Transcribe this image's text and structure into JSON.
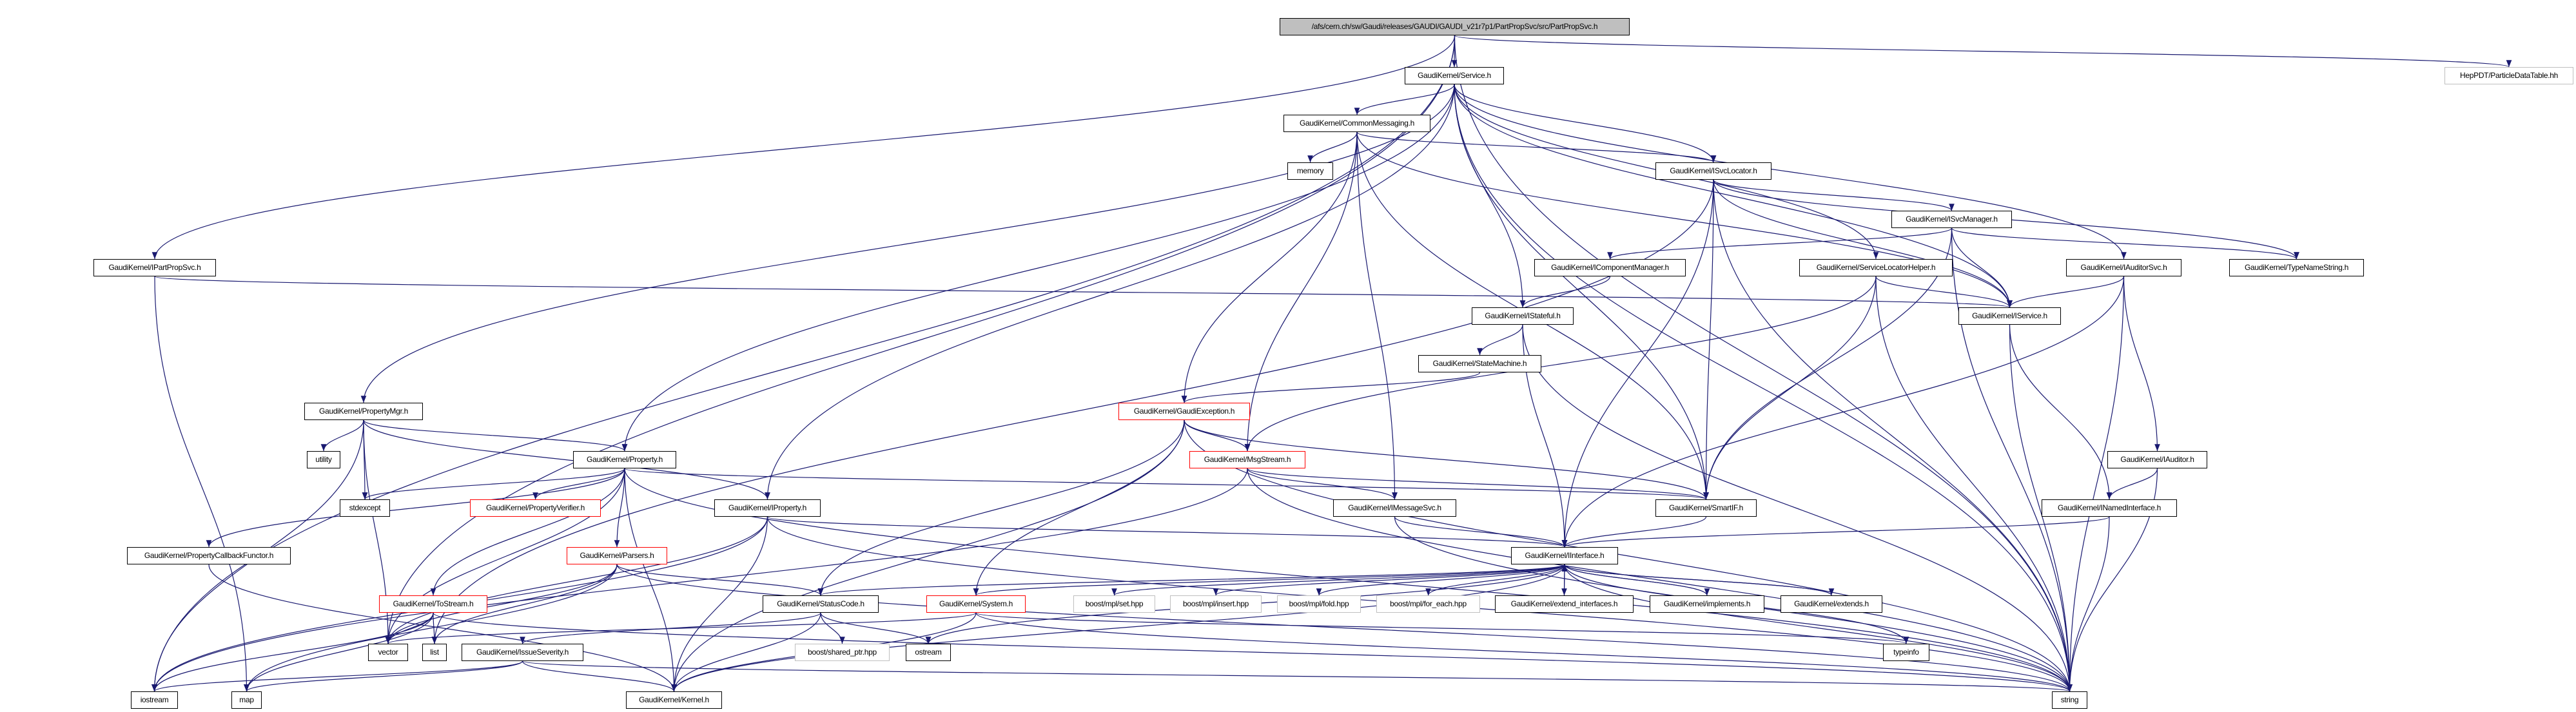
{
  "graph": {
    "edge_color": "#191970",
    "nodes": [
      {
        "id": "root",
        "label": "/afs/cern.ch/sw/Gaudi/releases/GAUDI/GAUDI_v21r7p1/PartPropSvc/src/PartPropSvc.h",
        "style": "root"
      },
      {
        "id": "service",
        "label": "GaudiKernel/Service.h",
        "style": "normal"
      },
      {
        "id": "hepdt",
        "label": "HepPDT/ParticleDataTable.hh",
        "style": "gray"
      },
      {
        "id": "commonmsg",
        "label": "GaudiKernel/CommonMessaging.h",
        "style": "normal"
      },
      {
        "id": "memory",
        "label": "memory",
        "style": "normal"
      },
      {
        "id": "isvclocator",
        "label": "GaudiKernel/ISvcLocator.h",
        "style": "normal"
      },
      {
        "id": "isvcmanager",
        "label": "GaudiKernel/ISvcManager.h",
        "style": "normal"
      },
      {
        "id": "ipartpropsvc",
        "label": "GaudiKernel/IPartPropSvc.h",
        "style": "normal"
      },
      {
        "id": "icomponentmanager",
        "label": "GaudiKernel/IComponentManager.h",
        "style": "normal"
      },
      {
        "id": "servicelocatorhelper",
        "label": "GaudiKernel/ServiceLocatorHelper.h",
        "style": "normal"
      },
      {
        "id": "iauditorsvc",
        "label": "GaudiKernel/IAuditorSvc.h",
        "style": "normal"
      },
      {
        "id": "typenamestring",
        "label": "GaudiKernel/TypeNameString.h",
        "style": "normal"
      },
      {
        "id": "istateful",
        "label": "GaudiKernel/IStateful.h",
        "style": "normal"
      },
      {
        "id": "iservice",
        "label": "GaudiKernel/IService.h",
        "style": "normal"
      },
      {
        "id": "statemachine",
        "label": "GaudiKernel/StateMachine.h",
        "style": "normal"
      },
      {
        "id": "propertymgr",
        "label": "GaudiKernel/PropertyMgr.h",
        "style": "normal"
      },
      {
        "id": "gaudiexception",
        "label": "GaudiKernel/GaudiException.h",
        "style": "red"
      },
      {
        "id": "utility",
        "label": "utility",
        "style": "normal"
      },
      {
        "id": "property",
        "label": "GaudiKernel/Property.h",
        "style": "normal"
      },
      {
        "id": "msgstream",
        "label": "GaudiKernel/MsgStream.h",
        "style": "red"
      },
      {
        "id": "iauditor",
        "label": "GaudiKernel/IAuditor.h",
        "style": "normal"
      },
      {
        "id": "stdexcept",
        "label": "stdexcept",
        "style": "normal"
      },
      {
        "id": "propertyverifier",
        "label": "GaudiKernel/PropertyVerifier.h",
        "style": "red"
      },
      {
        "id": "iproperty",
        "label": "GaudiKernel/IProperty.h",
        "style": "normal"
      },
      {
        "id": "imessagesvc",
        "label": "GaudiKernel/IMessageSvc.h",
        "style": "normal"
      },
      {
        "id": "smartif",
        "label": "GaudiKernel/SmartIF.h",
        "style": "normal"
      },
      {
        "id": "inamedinterface",
        "label": "GaudiKernel/INamedInterface.h",
        "style": "normal"
      },
      {
        "id": "propertycallbackfunctor",
        "label": "GaudiKernel/PropertyCallbackFunctor.h",
        "style": "normal"
      },
      {
        "id": "parsers",
        "label": "GaudiKernel/Parsers.h",
        "style": "red"
      },
      {
        "id": "iinterface",
        "label": "GaudiKernel/IInterface.h",
        "style": "normal"
      },
      {
        "id": "tostream",
        "label": "GaudiKernel/ToStream.h",
        "style": "red"
      },
      {
        "id": "statuscode",
        "label": "GaudiKernel/StatusCode.h",
        "style": "normal"
      },
      {
        "id": "system",
        "label": "GaudiKernel/System.h",
        "style": "red"
      },
      {
        "id": "mplset",
        "label": "boost/mpl/set.hpp",
        "style": "gray"
      },
      {
        "id": "mplinsert",
        "label": "boost/mpl/insert.hpp",
        "style": "gray"
      },
      {
        "id": "mplfold",
        "label": "boost/mpl/fold.hpp",
        "style": "gray"
      },
      {
        "id": "mplforeach",
        "label": "boost/mpl/for_each.hpp",
        "style": "gray"
      },
      {
        "id": "extendinterfaces",
        "label": "GaudiKernel/extend_interfaces.h",
        "style": "normal"
      },
      {
        "id": "implements",
        "label": "GaudiKernel/implements.h",
        "style": "normal"
      },
      {
        "id": "extends",
        "label": "GaudiKernel/extends.h",
        "style": "normal"
      },
      {
        "id": "vector",
        "label": "vector",
        "style": "normal"
      },
      {
        "id": "list",
        "label": "list",
        "style": "normal"
      },
      {
        "id": "issueseverity",
        "label": "GaudiKernel/IssueSeverity.h",
        "style": "normal"
      },
      {
        "id": "sharedptr",
        "label": "boost/shared_ptr.hpp",
        "style": "gray"
      },
      {
        "id": "ostream",
        "label": "ostream",
        "style": "normal"
      },
      {
        "id": "typeinfo",
        "label": "typeinfo",
        "style": "normal"
      },
      {
        "id": "iostream",
        "label": "iostream",
        "style": "normal"
      },
      {
        "id": "map",
        "label": "map",
        "style": "normal"
      },
      {
        "id": "kernel",
        "label": "GaudiKernel/Kernel.h",
        "style": "normal"
      },
      {
        "id": "string",
        "label": "string",
        "style": "normal"
      }
    ],
    "edges": [
      [
        "root",
        "service"
      ],
      [
        "root",
        "ipartpropsvc"
      ],
      [
        "root",
        "hepdt"
      ],
      [
        "root",
        "vector"
      ],
      [
        "root",
        "iostream"
      ],
      [
        "root",
        "string"
      ],
      [
        "service",
        "commonmsg"
      ],
      [
        "service",
        "isvclocator"
      ],
      [
        "service",
        "istateful"
      ],
      [
        "service",
        "iservice"
      ],
      [
        "service",
        "smartif"
      ],
      [
        "service",
        "iauditorsvc"
      ],
      [
        "service",
        "servicelocatorhelper"
      ],
      [
        "service",
        "propertymgr"
      ],
      [
        "service",
        "property"
      ],
      [
        "service",
        "iproperty"
      ],
      [
        "service",
        "string"
      ],
      [
        "commonmsg",
        "memory"
      ],
      [
        "commonmsg",
        "isvclocator"
      ],
      [
        "commonmsg",
        "iservice"
      ],
      [
        "commonmsg",
        "gaudiexception"
      ],
      [
        "commonmsg",
        "msgstream"
      ],
      [
        "commonmsg",
        "imessagesvc"
      ],
      [
        "commonmsg",
        "smartif"
      ],
      [
        "isvclocator",
        "isvcmanager"
      ],
      [
        "isvclocator",
        "typenamestring"
      ],
      [
        "isvclocator",
        "iservice"
      ],
      [
        "isvclocator",
        "smartif"
      ],
      [
        "isvclocator",
        "iinterface"
      ],
      [
        "isvclocator",
        "string"
      ],
      [
        "isvclocator",
        "list"
      ],
      [
        "isvcmanager",
        "icomponentmanager"
      ],
      [
        "isvcmanager",
        "iservice"
      ],
      [
        "isvcmanager",
        "typenamestring"
      ],
      [
        "isvcmanager",
        "smartif"
      ],
      [
        "isvcmanager",
        "string"
      ],
      [
        "icomponentmanager",
        "istateful"
      ],
      [
        "istateful",
        "statemachine"
      ],
      [
        "istateful",
        "iinterface"
      ],
      [
        "istateful",
        "string"
      ],
      [
        "statemachine",
        "gaudiexception"
      ],
      [
        "servicelocatorhelper",
        "iservice"
      ],
      [
        "servicelocatorhelper",
        "string"
      ],
      [
        "servicelocatorhelper",
        "smartif"
      ],
      [
        "servicelocatorhelper",
        "msgstream"
      ],
      [
        "iauditorsvc",
        "iservice"
      ],
      [
        "iauditorsvc",
        "iauditor"
      ],
      [
        "iauditorsvc",
        "iinterface"
      ],
      [
        "iauditorsvc",
        "string"
      ],
      [
        "iauditor",
        "inamedinterface"
      ],
      [
        "iauditor",
        "string"
      ],
      [
        "inamedinterface",
        "iinterface"
      ],
      [
        "inamedinterface",
        "string"
      ],
      [
        "iservice",
        "inamedinterface"
      ],
      [
        "iservice",
        "string"
      ],
      [
        "ipartpropsvc",
        "iservice"
      ],
      [
        "ipartpropsvc",
        "map"
      ],
      [
        "propertymgr",
        "property"
      ],
      [
        "propertymgr",
        "iproperty"
      ],
      [
        "propertymgr",
        "utility"
      ],
      [
        "propertymgr",
        "stdexcept"
      ],
      [
        "propertymgr",
        "vector"
      ],
      [
        "propertymgr",
        "iostream"
      ],
      [
        "property",
        "stdexcept"
      ],
      [
        "property",
        "propertyverifier"
      ],
      [
        "property",
        "propertycallbackfunctor"
      ],
      [
        "property",
        "parsers"
      ],
      [
        "property",
        "tostream"
      ],
      [
        "property",
        "vector"
      ],
      [
        "property",
        "string"
      ],
      [
        "property",
        "kernel"
      ],
      [
        "property",
        "smartif"
      ],
      [
        "iproperty",
        "iinterface"
      ],
      [
        "iproperty",
        "vector"
      ],
      [
        "iproperty",
        "string"
      ],
      [
        "iproperty",
        "kernel"
      ],
      [
        "iproperty",
        "iostream"
      ],
      [
        "gaudiexception",
        "msgstream"
      ],
      [
        "gaudiexception",
        "statuscode"
      ],
      [
        "gaudiexception",
        "system"
      ],
      [
        "gaudiexception",
        "string"
      ],
      [
        "gaudiexception",
        "smartif"
      ],
      [
        "gaudiexception",
        "kernel"
      ],
      [
        "msgstream",
        "imessagesvc"
      ],
      [
        "msgstream",
        "smartif"
      ],
      [
        "msgstream",
        "string"
      ],
      [
        "msgstream",
        "iostream"
      ],
      [
        "imessagesvc",
        "iinterface"
      ],
      [
        "imessagesvc",
        "string"
      ],
      [
        "smartif",
        "iinterface"
      ],
      [
        "iinterface",
        "system"
      ],
      [
        "iinterface",
        "mplset"
      ],
      [
        "iinterface",
        "mplinsert"
      ],
      [
        "iinterface",
        "mplfold"
      ],
      [
        "iinterface",
        "mplforeach"
      ],
      [
        "iinterface",
        "extendinterfaces"
      ],
      [
        "iinterface",
        "implements"
      ],
      [
        "iinterface",
        "extends"
      ],
      [
        "iinterface",
        "typeinfo"
      ],
      [
        "iinterface",
        "statuscode"
      ],
      [
        "iinterface",
        "string"
      ],
      [
        "iinterface",
        "ostream"
      ],
      [
        "iinterface",
        "kernel"
      ],
      [
        "extendinterfaces",
        "iinterface"
      ],
      [
        "implements",
        "iinterface"
      ],
      [
        "extends",
        "iinterface"
      ],
      [
        "statuscode",
        "issueseverity"
      ],
      [
        "statuscode",
        "sharedptr"
      ],
      [
        "statuscode",
        "ostream"
      ],
      [
        "statuscode",
        "kernel"
      ],
      [
        "issueseverity",
        "map"
      ],
      [
        "issueseverity",
        "iostream"
      ],
      [
        "issueseverity",
        "string"
      ],
      [
        "issueseverity",
        "kernel"
      ],
      [
        "system",
        "string"
      ],
      [
        "system",
        "vector"
      ],
      [
        "system",
        "kernel"
      ],
      [
        "system",
        "typeinfo"
      ],
      [
        "parsers",
        "statuscode"
      ],
      [
        "parsers",
        "vector"
      ],
      [
        "parsers",
        "list"
      ],
      [
        "parsers",
        "map"
      ],
      [
        "parsers",
        "string"
      ],
      [
        "tostream",
        "vector"
      ],
      [
        "tostream",
        "list"
      ],
      [
        "tostream",
        "map"
      ],
      [
        "tostream",
        "iostream"
      ],
      [
        "tostream",
        "string"
      ],
      [
        "propertycallbackfunctor",
        "kernel"
      ]
    ]
  }
}
